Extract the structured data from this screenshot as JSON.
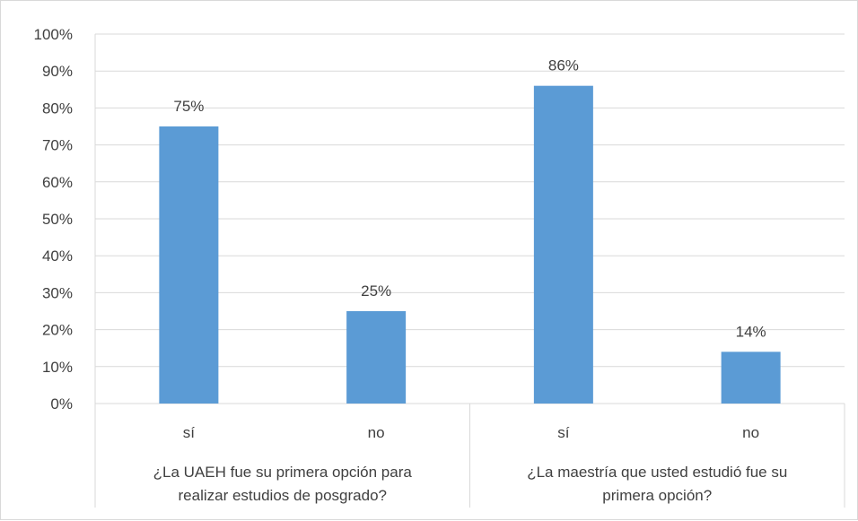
{
  "chart_data": {
    "type": "bar",
    "groups": [
      {
        "label_lines": [
          "¿La UAEH fue su primera opción para",
          "realizar estudios de posgrado?"
        ],
        "categories": [
          "sí",
          "no"
        ],
        "values": [
          75,
          25
        ],
        "value_labels": [
          "75%",
          "25%"
        ]
      },
      {
        "label_lines": [
          "¿La maestría que usted estudió fue su",
          "primera opción?"
        ],
        "categories": [
          "sí",
          "no"
        ],
        "values": [
          86,
          14
        ],
        "value_labels": [
          "86%",
          "14%"
        ]
      }
    ],
    "ylim": [
      0,
      100
    ],
    "yticks": [
      "0%",
      "10%",
      "20%",
      "30%",
      "40%",
      "50%",
      "60%",
      "70%",
      "80%",
      "90%",
      "100%"
    ],
    "grid": true,
    "bar_color": "#5b9bd5",
    "grid_color": "#d9d9d9",
    "text_color": "#404040"
  }
}
